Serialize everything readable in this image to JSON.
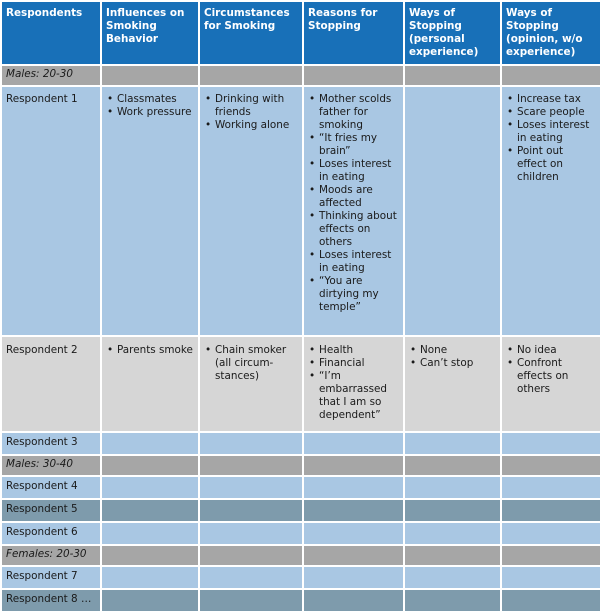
{
  "table": {
    "headers": [
      "Respondents",
      "Influences on Smoking Behavior",
      "Circumstances for Smoking",
      "Reasons for Stopping",
      "Ways of Stopping (personal experience)",
      "Ways of Stopping (opinion, w/o experience)"
    ],
    "groups": {
      "males_20_30": "Males: 20-30",
      "males_30_40": "Males: 30-40",
      "females_20_30": "Females: 20-30"
    },
    "respondent1": {
      "label": "Respondent 1",
      "influences": [
        "Classmates",
        "Work pressure"
      ],
      "circumstances": [
        "Drinking with friends",
        "Working alone"
      ],
      "reasons": [
        "Mother scolds father for smoking",
        "“It fries my brain”",
        "Loses interest in eating",
        "Moods are affected",
        "Thinking about effects on others",
        "Loses interest in eating",
        "“You are dirtying my temple”"
      ],
      "personal": [],
      "opinion": [
        "Increase tax",
        "Scare people",
        "Loses interest in eating",
        "Point out effect on children"
      ]
    },
    "respondent2": {
      "label": "Respondent 2",
      "influences": [
        "Parents smoke"
      ],
      "circumstances": [
        "Chain smoker (all circum-stances)"
      ],
      "reasons": [
        "Health",
        "Financial",
        "“I’m embarrassed that I am so dependent”"
      ],
      "personal": [
        "None",
        "Can’t stop"
      ],
      "opinion": [
        "No idea",
        "Confront effects on others"
      ]
    },
    "other_respondents": {
      "r3": "Respondent 3",
      "r4": "Respondent 4",
      "r5": "Respondent 5",
      "r6": "Respondent 6",
      "r7": "Respondent 7",
      "r8": "Respondent 8 …"
    }
  }
}
